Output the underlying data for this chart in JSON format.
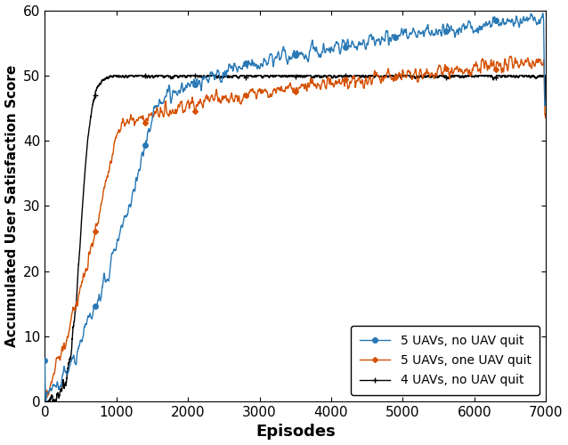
{
  "title": "",
  "xlabel": "Episodes",
  "ylabel": "Accumulated User Satisfaction Score",
  "xlim": [
    0,
    7000
  ],
  "ylim": [
    0,
    60
  ],
  "xticks": [
    0,
    1000,
    2000,
    3000,
    4000,
    5000,
    6000,
    7000
  ],
  "yticks": [
    0,
    10,
    20,
    30,
    40,
    50,
    60
  ],
  "legend": [
    "5 UAVs, no UAV quit",
    "5 UAVs, one UAV quit",
    "4 UAVs, no UAV quit"
  ],
  "colors": {
    "blue": "#2878b5",
    "orange": "#d45000",
    "black": "#000000"
  },
  "line_width": 1.0,
  "marker_size": 4,
  "figsize": [
    6.38,
    5.0
  ],
  "dpi": 100,
  "legend_loc": "lower right",
  "legend_fontsize": 10,
  "xlabel_fontsize": 13,
  "ylabel_fontsize": 11,
  "tick_fontsize": 11
}
